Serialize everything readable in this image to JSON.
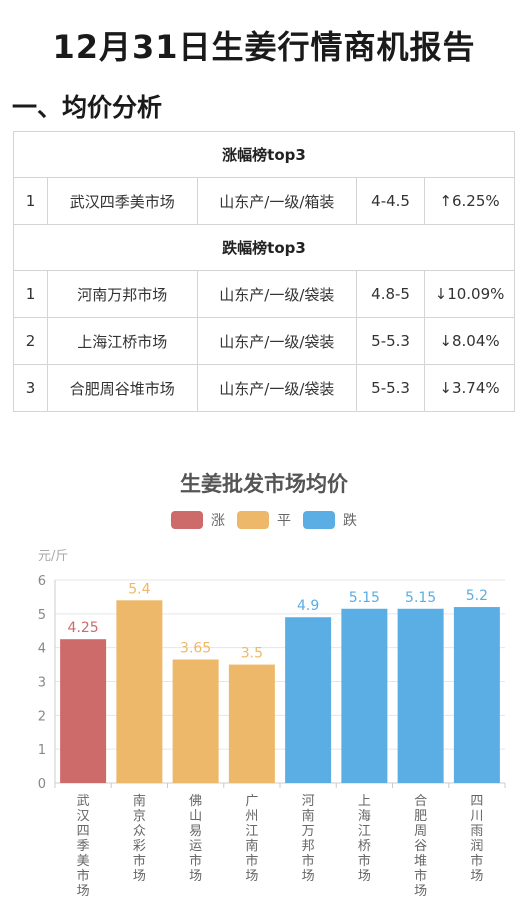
{
  "title": "12月31日生姜行情商机报告",
  "section": "一、均价分析",
  "table": {
    "rise_header": "涨幅榜top3",
    "rise_rows": [
      {
        "rank": "1",
        "market": "武汉四季美市场",
        "spec": "山东产/一级/箱装",
        "price": "4-4.5",
        "change": "↑6.25%"
      }
    ],
    "fall_header": "跌幅榜top3",
    "fall_rows": [
      {
        "rank": "1",
        "market": "河南万邦市场",
        "spec": "山东产/一级/袋装",
        "price": "4.8-5",
        "change": "↓10.09%"
      },
      {
        "rank": "2",
        "market": "上海江桥市场",
        "spec": "山东产/一级/袋装",
        "price": "5-5.3",
        "change": "↓8.04%"
      },
      {
        "rank": "3",
        "market": "合肥周谷堆市场",
        "spec": "山东产/一级/袋装",
        "price": "5-5.3",
        "change": "↓3.74%"
      }
    ]
  },
  "chart_data": {
    "type": "bar",
    "title": "生姜批发市场均价",
    "ylabel": "元/斤",
    "ylim": [
      0,
      6
    ],
    "yticks": [
      0,
      1,
      2,
      3,
      4,
      5,
      6
    ],
    "legend": [
      {
        "label": "涨",
        "color": "#cd6b6b"
      },
      {
        "label": "平",
        "color": "#eeb86a"
      },
      {
        "label": "跌",
        "color": "#5aaee3"
      }
    ],
    "categories": [
      "武汉四季美市场",
      "南京众彩市场",
      "佛山易运市场",
      "广州江南市场",
      "河南万邦市场",
      "上海江桥市场",
      "合肥周谷堆市场",
      "四川雨润市场"
    ],
    "values": [
      4.25,
      5.4,
      3.65,
      3.5,
      4.9,
      5.15,
      5.15,
      5.2
    ],
    "value_labels": [
      "4.25",
      "5.4",
      "3.65",
      "3.5",
      "4.9",
      "5.15",
      "5.15",
      "5.2"
    ],
    "trend": [
      "涨",
      "平",
      "平",
      "平",
      "跌",
      "跌",
      "跌",
      "跌"
    ]
  }
}
